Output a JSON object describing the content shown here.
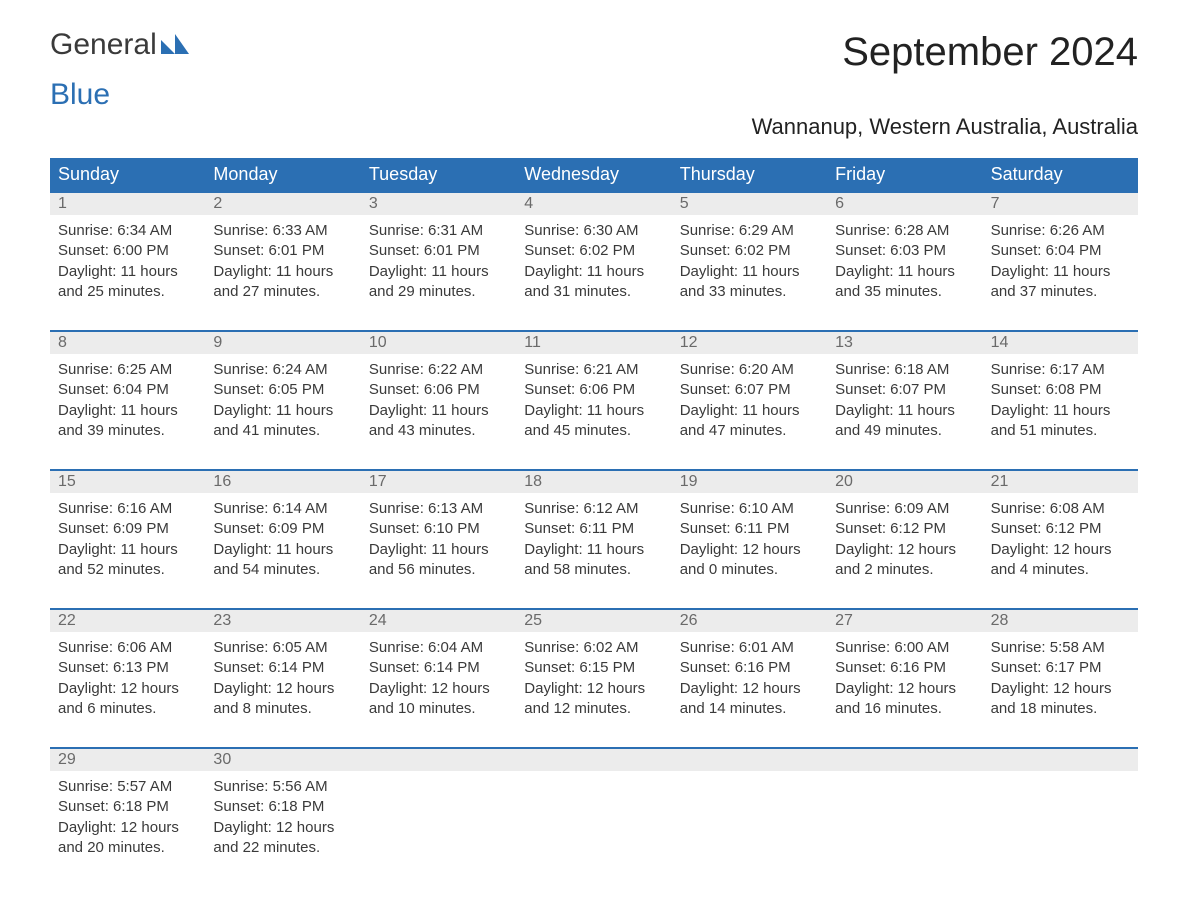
{
  "logo": {
    "text_general": "General",
    "text_blue": "Blue"
  },
  "title": "September 2024",
  "subtitle": "Wannanup, Western Australia, Australia",
  "colors": {
    "header_bg": "#2b6fb3",
    "header_text": "#ffffff",
    "daynum_bg": "#ececec",
    "daynum_text": "#6a6a6a",
    "body_text": "#3a3a3a",
    "week_border": "#2b6fb3",
    "page_bg": "#ffffff"
  },
  "typography": {
    "title_fontsize": 40,
    "subtitle_fontsize": 22,
    "dow_fontsize": 18,
    "daynum_fontsize": 16,
    "body_fontsize": 15
  },
  "dow": [
    "Sunday",
    "Monday",
    "Tuesday",
    "Wednesday",
    "Thursday",
    "Friday",
    "Saturday"
  ],
  "weeks": [
    [
      {
        "n": "1",
        "sunrise": "Sunrise: 6:34 AM",
        "sunset": "Sunset: 6:00 PM",
        "daylight": "Daylight: 11 hours and 25 minutes."
      },
      {
        "n": "2",
        "sunrise": "Sunrise: 6:33 AM",
        "sunset": "Sunset: 6:01 PM",
        "daylight": "Daylight: 11 hours and 27 minutes."
      },
      {
        "n": "3",
        "sunrise": "Sunrise: 6:31 AM",
        "sunset": "Sunset: 6:01 PM",
        "daylight": "Daylight: 11 hours and 29 minutes."
      },
      {
        "n": "4",
        "sunrise": "Sunrise: 6:30 AM",
        "sunset": "Sunset: 6:02 PM",
        "daylight": "Daylight: 11 hours and 31 minutes."
      },
      {
        "n": "5",
        "sunrise": "Sunrise: 6:29 AM",
        "sunset": "Sunset: 6:02 PM",
        "daylight": "Daylight: 11 hours and 33 minutes."
      },
      {
        "n": "6",
        "sunrise": "Sunrise: 6:28 AM",
        "sunset": "Sunset: 6:03 PM",
        "daylight": "Daylight: 11 hours and 35 minutes."
      },
      {
        "n": "7",
        "sunrise": "Sunrise: 6:26 AM",
        "sunset": "Sunset: 6:04 PM",
        "daylight": "Daylight: 11 hours and 37 minutes."
      }
    ],
    [
      {
        "n": "8",
        "sunrise": "Sunrise: 6:25 AM",
        "sunset": "Sunset: 6:04 PM",
        "daylight": "Daylight: 11 hours and 39 minutes."
      },
      {
        "n": "9",
        "sunrise": "Sunrise: 6:24 AM",
        "sunset": "Sunset: 6:05 PM",
        "daylight": "Daylight: 11 hours and 41 minutes."
      },
      {
        "n": "10",
        "sunrise": "Sunrise: 6:22 AM",
        "sunset": "Sunset: 6:06 PM",
        "daylight": "Daylight: 11 hours and 43 minutes."
      },
      {
        "n": "11",
        "sunrise": "Sunrise: 6:21 AM",
        "sunset": "Sunset: 6:06 PM",
        "daylight": "Daylight: 11 hours and 45 minutes."
      },
      {
        "n": "12",
        "sunrise": "Sunrise: 6:20 AM",
        "sunset": "Sunset: 6:07 PM",
        "daylight": "Daylight: 11 hours and 47 minutes."
      },
      {
        "n": "13",
        "sunrise": "Sunrise: 6:18 AM",
        "sunset": "Sunset: 6:07 PM",
        "daylight": "Daylight: 11 hours and 49 minutes."
      },
      {
        "n": "14",
        "sunrise": "Sunrise: 6:17 AM",
        "sunset": "Sunset: 6:08 PM",
        "daylight": "Daylight: 11 hours and 51 minutes."
      }
    ],
    [
      {
        "n": "15",
        "sunrise": "Sunrise: 6:16 AM",
        "sunset": "Sunset: 6:09 PM",
        "daylight": "Daylight: 11 hours and 52 minutes."
      },
      {
        "n": "16",
        "sunrise": "Sunrise: 6:14 AM",
        "sunset": "Sunset: 6:09 PM",
        "daylight": "Daylight: 11 hours and 54 minutes."
      },
      {
        "n": "17",
        "sunrise": "Sunrise: 6:13 AM",
        "sunset": "Sunset: 6:10 PM",
        "daylight": "Daylight: 11 hours and 56 minutes."
      },
      {
        "n": "18",
        "sunrise": "Sunrise: 6:12 AM",
        "sunset": "Sunset: 6:11 PM",
        "daylight": "Daylight: 11 hours and 58 minutes."
      },
      {
        "n": "19",
        "sunrise": "Sunrise: 6:10 AM",
        "sunset": "Sunset: 6:11 PM",
        "daylight": "Daylight: 12 hours and 0 minutes."
      },
      {
        "n": "20",
        "sunrise": "Sunrise: 6:09 AM",
        "sunset": "Sunset: 6:12 PM",
        "daylight": "Daylight: 12 hours and 2 minutes."
      },
      {
        "n": "21",
        "sunrise": "Sunrise: 6:08 AM",
        "sunset": "Sunset: 6:12 PM",
        "daylight": "Daylight: 12 hours and 4 minutes."
      }
    ],
    [
      {
        "n": "22",
        "sunrise": "Sunrise: 6:06 AM",
        "sunset": "Sunset: 6:13 PM",
        "daylight": "Daylight: 12 hours and 6 minutes."
      },
      {
        "n": "23",
        "sunrise": "Sunrise: 6:05 AM",
        "sunset": "Sunset: 6:14 PM",
        "daylight": "Daylight: 12 hours and 8 minutes."
      },
      {
        "n": "24",
        "sunrise": "Sunrise: 6:04 AM",
        "sunset": "Sunset: 6:14 PM",
        "daylight": "Daylight: 12 hours and 10 minutes."
      },
      {
        "n": "25",
        "sunrise": "Sunrise: 6:02 AM",
        "sunset": "Sunset: 6:15 PM",
        "daylight": "Daylight: 12 hours and 12 minutes."
      },
      {
        "n": "26",
        "sunrise": "Sunrise: 6:01 AM",
        "sunset": "Sunset: 6:16 PM",
        "daylight": "Daylight: 12 hours and 14 minutes."
      },
      {
        "n": "27",
        "sunrise": "Sunrise: 6:00 AM",
        "sunset": "Sunset: 6:16 PM",
        "daylight": "Daylight: 12 hours and 16 minutes."
      },
      {
        "n": "28",
        "sunrise": "Sunrise: 5:58 AM",
        "sunset": "Sunset: 6:17 PM",
        "daylight": "Daylight: 12 hours and 18 minutes."
      }
    ],
    [
      {
        "n": "29",
        "sunrise": "Sunrise: 5:57 AM",
        "sunset": "Sunset: 6:18 PM",
        "daylight": "Daylight: 12 hours and 20 minutes."
      },
      {
        "n": "30",
        "sunrise": "Sunrise: 5:56 AM",
        "sunset": "Sunset: 6:18 PM",
        "daylight": "Daylight: 12 hours and 22 minutes."
      },
      null,
      null,
      null,
      null,
      null
    ]
  ]
}
